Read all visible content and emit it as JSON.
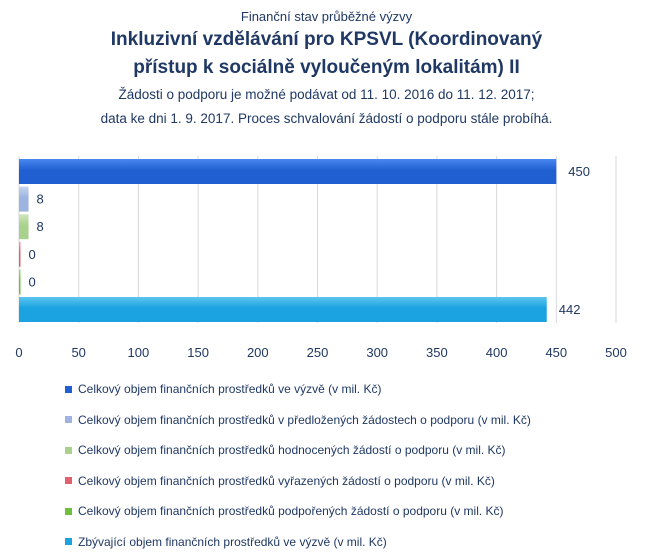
{
  "header": {
    "top_label": "Finanční stav průběžné výzvy",
    "title_line1": "Inkluzivní vzdělávání pro KPSVL (Koordinovaný",
    "title_line2": "přístup k sociálně vyloučeným lokalitám) II",
    "subtitle_line1": "Žádosti o podporu je možné podávat od 11. 10. 2016 do 11. 12. 2017;",
    "subtitle_line2": "data ke dni 1. 9. 2017. Proces schvalování žádostí o podporu stále probíhá."
  },
  "chart_data": {
    "type": "bar",
    "orientation": "horizontal",
    "xlim": [
      0,
      500
    ],
    "x_ticks": [
      0,
      50,
      100,
      150,
      200,
      250,
      300,
      350,
      400,
      450,
      500
    ],
    "grid": "vertical",
    "legend_position": "bottom",
    "series": [
      {
        "name": "Celkový objem finančních prostředků ve výzvě (v mil. Kč)",
        "value": 450,
        "label": "450",
        "color": "#1f5fd1",
        "highlight": "#4a88f0"
      },
      {
        "name": "Celkový objem finančních prostředků v předložených žádostech o podporu (v mil. Kč)",
        "value": 8,
        "label": "8",
        "color": "#9db3e0",
        "highlight": "#c4d3f0"
      },
      {
        "name": "Celkový objem finančních prostředků hodnocených žádostí o podporu (v mil. Kč)",
        "value": 8,
        "label": "8",
        "color": "#a9d18e",
        "highlight": "#cfe6bd"
      },
      {
        "name": "Celkový objem finančních prostředků vyřazených žádostí o podporu (v mil. Kč)",
        "value": 0,
        "label": "0",
        "color": "#e06070",
        "highlight": "#f0a0aa"
      },
      {
        "name": "Celkový objem finančních prostředků podpořených žádostí o podporu (v mil. Kč)",
        "value": 0,
        "label": "0",
        "color": "#6fbf3f",
        "highlight": "#a5dd80"
      },
      {
        "name": "Zbývající objem finančních prostředků ve výzvě (v mil. Kč)",
        "value": 442,
        "label": "442",
        "color": "#1aa3e0",
        "highlight": "#5cc4f0"
      }
    ]
  }
}
